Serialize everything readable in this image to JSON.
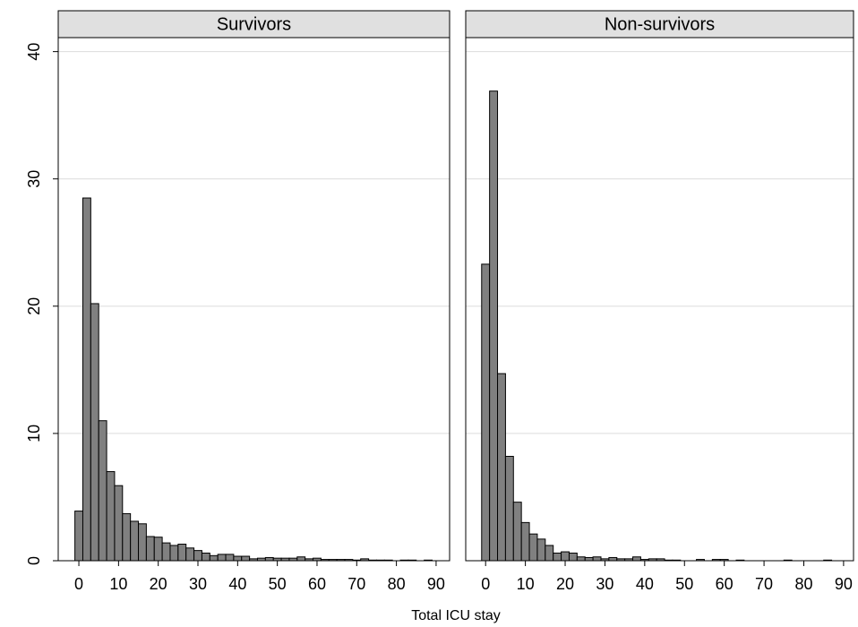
{
  "chart_data": [
    {
      "type": "histogram",
      "title": "Survivors",
      "xlabel": "Total ICU stay",
      "color": "#808080",
      "grid": true,
      "bins": [
        -1,
        1,
        3,
        5,
        7,
        9,
        11,
        13,
        15,
        17,
        19,
        21,
        23,
        25,
        27,
        29,
        31,
        33,
        35,
        37,
        39,
        41,
        43,
        45,
        47,
        49,
        51,
        53,
        55,
        57,
        59,
        61,
        63,
        65,
        67,
        69,
        71,
        73,
        75,
        77,
        79,
        81,
        83,
        85,
        87,
        89
      ],
      "values": [
        3.9,
        28.5,
        20.2,
        11.0,
        7.0,
        5.9,
        3.7,
        3.1,
        2.9,
        1.9,
        1.85,
        1.4,
        1.2,
        1.3,
        1.0,
        0.8,
        0.6,
        0.4,
        0.5,
        0.5,
        0.35,
        0.35,
        0.15,
        0.2,
        0.25,
        0.2,
        0.2,
        0.2,
        0.3,
        0.15,
        0.2,
        0.1,
        0.1,
        0.1,
        0.1,
        0.05,
        0.15,
        0.05,
        0.05,
        0.05,
        0,
        0.05,
        0.05,
        0,
        0.05
      ],
      "xlim": [
        -5.2,
        93.4
      ],
      "ylim": [
        0,
        41.1
      ],
      "xticks": [
        0,
        10,
        20,
        30,
        40,
        50,
        60,
        70,
        80,
        90
      ],
      "yticks": [
        0,
        10,
        20,
        30,
        40
      ]
    },
    {
      "type": "histogram",
      "title": "Non-survivors",
      "color": "#808080",
      "grid": true,
      "bins": [
        -1,
        1,
        3,
        5,
        7,
        9,
        11,
        13,
        15,
        17,
        19,
        21,
        23,
        25,
        27,
        29,
        31,
        33,
        35,
        37,
        39,
        41,
        43,
        45,
        47,
        49,
        51,
        53,
        55,
        57,
        59,
        61,
        63,
        65,
        67,
        69,
        71,
        73,
        75,
        77,
        79,
        81,
        83,
        85,
        87,
        89
      ],
      "values": [
        23.3,
        36.9,
        14.7,
        8.2,
        4.6,
        3.0,
        2.1,
        1.7,
        1.2,
        0.6,
        0.7,
        0.6,
        0.3,
        0.25,
        0.3,
        0.15,
        0.25,
        0.15,
        0.15,
        0.3,
        0.1,
        0.15,
        0.15,
        0.05,
        0.05,
        0,
        0,
        0.1,
        0,
        0.1,
        0.1,
        0,
        0.05,
        0,
        0,
        0,
        0,
        0,
        0.05,
        0,
        0,
        0,
        0,
        0.05,
        0
      ],
      "xlim": [
        -5,
        92.5
      ],
      "ylim": [
        0,
        41.1
      ],
      "xticks": [
        0,
        10,
        20,
        30,
        40,
        50,
        60,
        70,
        80,
        90
      ],
      "yticks": [
        0,
        10,
        20,
        30,
        40
      ]
    }
  ]
}
